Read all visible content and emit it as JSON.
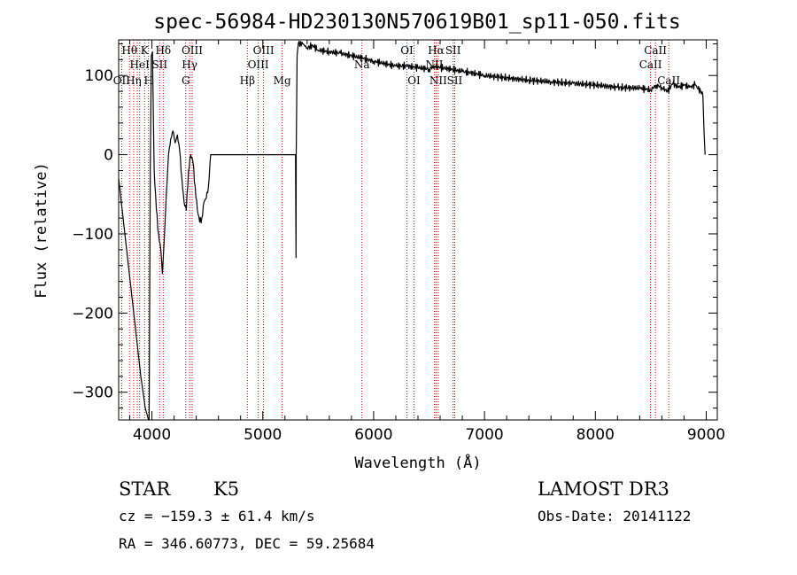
{
  "chart_data": {
    "type": "line",
    "title": "spec-56984-HD230130N570619B01_sp11-050.fits",
    "xlabel": "Wavelength (Å)",
    "ylabel": "Flux (relative)",
    "xlim": [
      3700,
      9100
    ],
    "ylim": [
      -335,
      145
    ],
    "xticks": [
      4000,
      5000,
      6000,
      7000,
      8000,
      9000
    ],
    "yticks": [
      -300,
      -200,
      -100,
      0,
      100
    ],
    "line_color": "#000000",
    "marker_color": "#cc0000",
    "series": [
      {
        "name": "flux",
        "x": [
          3700,
          3740,
          3780,
          3820,
          3860,
          3900,
          3940,
          3970,
          3975,
          3985,
          3995,
          4005,
          4020,
          4040,
          4060,
          4080,
          4095,
          4110,
          4130,
          4150,
          4170,
          4190,
          4210,
          4230,
          4250,
          4270,
          4290,
          4310,
          4330,
          4350,
          4370,
          4390,
          4410,
          4430,
          4450,
          4470,
          4490,
          4510,
          4530,
          4550,
          4560,
          4570,
          4700,
          4900,
          5100,
          5290,
          5295,
          5300,
          5302,
          5310,
          5320,
          5360,
          5400,
          5450,
          5500,
          5600,
          5700,
          5800,
          5900,
          6000,
          6100,
          6200,
          6300,
          6400,
          6500,
          6550,
          6600,
          6700,
          6800,
          6900,
          7000,
          7200,
          7400,
          7600,
          7800,
          8000,
          8200,
          8400,
          8500,
          8550,
          8600,
          8650,
          8700,
          8750,
          8800,
          8850,
          8900,
          8950,
          8970,
          8980,
          8990
        ],
        "y": [
          -30,
          -80,
          -130,
          -180,
          -230,
          -280,
          -320,
          -335,
          -335,
          -20,
          125,
          130,
          -20,
          -70,
          -100,
          -120,
          -150,
          -110,
          -50,
          0,
          20,
          30,
          15,
          25,
          5,
          -30,
          -60,
          -70,
          -20,
          0,
          -10,
          -40,
          -70,
          -85,
          -80,
          -60,
          -55,
          -40,
          0,
          0,
          0,
          0,
          0,
          0,
          0,
          0,
          0,
          -130,
          0,
          125,
          140,
          140,
          135,
          138,
          132,
          130,
          128,
          125,
          122,
          118,
          115,
          112,
          112,
          110,
          108,
          112,
          110,
          108,
          105,
          103,
          100,
          97,
          94,
          92,
          90,
          88,
          85,
          84,
          82,
          88,
          85,
          80,
          90,
          85,
          88,
          85,
          88,
          80,
          75,
          30,
          0
        ]
      }
    ],
    "lines": [
      {
        "w": 3727,
        "label": "OII",
        "row": 3
      },
      {
        "w": 3798,
        "label": "Hθ",
        "row": 1
      },
      {
        "w": 3835,
        "label": "Hη",
        "row": 3
      },
      {
        "w": 3868,
        "label": "",
        "row": 0
      },
      {
        "w": 3889,
        "label": "HeI",
        "row": 2
      },
      {
        "w": 3934,
        "label": "K",
        "row": 1
      },
      {
        "w": 3969,
        "label": "H",
        "row": 3
      },
      {
        "w": 4070,
        "label": "SII",
        "row": 2
      },
      {
        "w": 4102,
        "label": "Hδ",
        "row": 1
      },
      {
        "w": 4305,
        "label": "G",
        "row": 3
      },
      {
        "w": 4340,
        "label": "Hγ",
        "row": 2
      },
      {
        "w": 4363,
        "label": "OIII",
        "row": 1
      },
      {
        "w": 4861,
        "label": "Hβ",
        "row": 3
      },
      {
        "w": 4959,
        "label": "OIII",
        "row": 2
      },
      {
        "w": 5007,
        "label": "OIII",
        "row": 1
      },
      {
        "w": 5175,
        "label": "Mg",
        "row": 3
      },
      {
        "w": 5894,
        "label": "Na",
        "row": 2
      },
      {
        "w": 6300,
        "label": "OI",
        "row": 1
      },
      {
        "w": 6364,
        "label": "OI",
        "row": 3
      },
      {
        "w": 6548,
        "label": "NII",
        "row": 2
      },
      {
        "w": 6563,
        "label": "Hα",
        "row": 1
      },
      {
        "w": 6583,
        "label": "NII",
        "row": 3
      },
      {
        "w": 6717,
        "label": "SII",
        "row": 1
      },
      {
        "w": 6731,
        "label": "SII",
        "row": 3
      },
      {
        "w": 8498,
        "label": "CaII",
        "row": 2
      },
      {
        "w": 8542,
        "label": "CaII",
        "row": 1
      },
      {
        "w": 8662,
        "label": "CaII",
        "row": 3
      }
    ]
  },
  "info": {
    "object_class": "STAR",
    "subclass": "K5",
    "survey": "LAMOST DR3",
    "cz": "cz = −159.3 ± 61.4 km/s",
    "obs_date": "Obs-Date: 20141122",
    "coords": "RA = 346.60773, DEC =  59.25684"
  }
}
